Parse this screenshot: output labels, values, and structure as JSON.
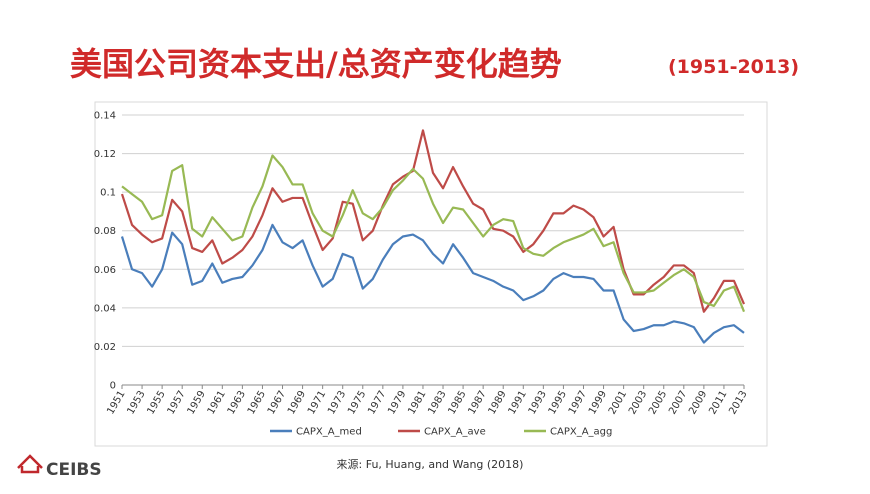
{
  "chart_data": {
    "type": "line",
    "title": "美国公司资本支出/总资产变化趋势",
    "subtitle": "(1951-2013)",
    "x": [
      1951,
      1952,
      1953,
      1954,
      1955,
      1956,
      1957,
      1958,
      1959,
      1960,
      1961,
      1962,
      1963,
      1964,
      1965,
      1966,
      1967,
      1968,
      1969,
      1970,
      1971,
      1972,
      1973,
      1974,
      1975,
      1976,
      1977,
      1978,
      1979,
      1980,
      1981,
      1982,
      1983,
      1984,
      1985,
      1986,
      1987,
      1988,
      1989,
      1990,
      1991,
      1992,
      1993,
      1994,
      1995,
      1996,
      1997,
      1998,
      1999,
      2000,
      2001,
      2002,
      2003,
      2004,
      2005,
      2006,
      2007,
      2008,
      2009,
      2010,
      2011,
      2012,
      2013
    ],
    "xlim": [
      1951,
      2013
    ],
    "xticks": [
      1951,
      1953,
      1955,
      1957,
      1959,
      1961,
      1963,
      1965,
      1967,
      1969,
      1971,
      1973,
      1975,
      1977,
      1979,
      1981,
      1983,
      1985,
      1987,
      1989,
      1991,
      1993,
      1995,
      1997,
      1999,
      2001,
      2003,
      2005,
      2007,
      2009,
      2011,
      2013
    ],
    "ylim": [
      0,
      0.14
    ],
    "yticks": [
      0,
      0.02,
      0.04,
      0.06,
      0.08,
      0.1,
      0.12,
      0.14
    ],
    "grid": true,
    "legend": "bottom",
    "series": [
      {
        "name": "CAPX_A_med",
        "color": "#4a7ebb",
        "values": [
          0.077,
          0.06,
          0.058,
          0.051,
          0.06,
          0.079,
          0.073,
          0.052,
          0.054,
          0.063,
          0.053,
          0.055,
          0.056,
          0.062,
          0.07,
          0.083,
          0.074,
          0.071,
          0.075,
          0.062,
          0.051,
          0.055,
          0.068,
          0.066,
          0.05,
          0.055,
          0.065,
          0.073,
          0.077,
          0.078,
          0.075,
          0.068,
          0.063,
          0.073,
          0.066,
          0.058,
          0.056,
          0.054,
          0.051,
          0.049,
          0.044,
          0.046,
          0.049,
          0.055,
          0.058,
          0.056,
          0.056,
          0.055,
          0.049,
          0.049,
          0.034,
          0.028,
          0.029,
          0.031,
          0.031,
          0.033,
          0.032,
          0.03,
          0.022,
          0.027,
          0.03,
          0.031,
          0.027
        ]
      },
      {
        "name": "CAPX_A_ave",
        "color": "#be4b48",
        "values": [
          0.099,
          0.083,
          0.078,
          0.074,
          0.076,
          0.096,
          0.09,
          0.071,
          0.069,
          0.075,
          0.063,
          0.066,
          0.07,
          0.077,
          0.088,
          0.102,
          0.095,
          0.097,
          0.097,
          0.083,
          0.07,
          0.076,
          0.095,
          0.094,
          0.075,
          0.08,
          0.093,
          0.104,
          0.108,
          0.111,
          0.132,
          0.11,
          0.102,
          0.113,
          0.103,
          0.094,
          0.091,
          0.081,
          0.08,
          0.077,
          0.069,
          0.073,
          0.08,
          0.089,
          0.089,
          0.093,
          0.091,
          0.087,
          0.077,
          0.082,
          0.06,
          0.047,
          0.047,
          0.052,
          0.056,
          0.062,
          0.062,
          0.058,
          0.038,
          0.045,
          0.054,
          0.054,
          0.042
        ]
      },
      {
        "name": "CAPX_A_agg",
        "color": "#98b954",
        "values": [
          0.103,
          0.099,
          0.095,
          0.086,
          0.088,
          0.111,
          0.114,
          0.081,
          0.077,
          0.087,
          0.081,
          0.075,
          0.077,
          0.092,
          0.103,
          0.119,
          0.113,
          0.104,
          0.104,
          0.089,
          0.08,
          0.077,
          0.088,
          0.101,
          0.089,
          0.086,
          0.092,
          0.101,
          0.106,
          0.112,
          0.107,
          0.094,
          0.084,
          0.092,
          0.091,
          0.084,
          0.077,
          0.083,
          0.086,
          0.085,
          0.071,
          0.068,
          0.067,
          0.071,
          0.074,
          0.076,
          0.078,
          0.081,
          0.072,
          0.074,
          0.058,
          0.048,
          0.048,
          0.049,
          0.053,
          0.057,
          0.06,
          0.056,
          0.043,
          0.041,
          0.049,
          0.051,
          0.038
        ]
      }
    ]
  },
  "source": "来源: Fu, Huang, and Wang (2018)",
  "logo": "CEIBS"
}
